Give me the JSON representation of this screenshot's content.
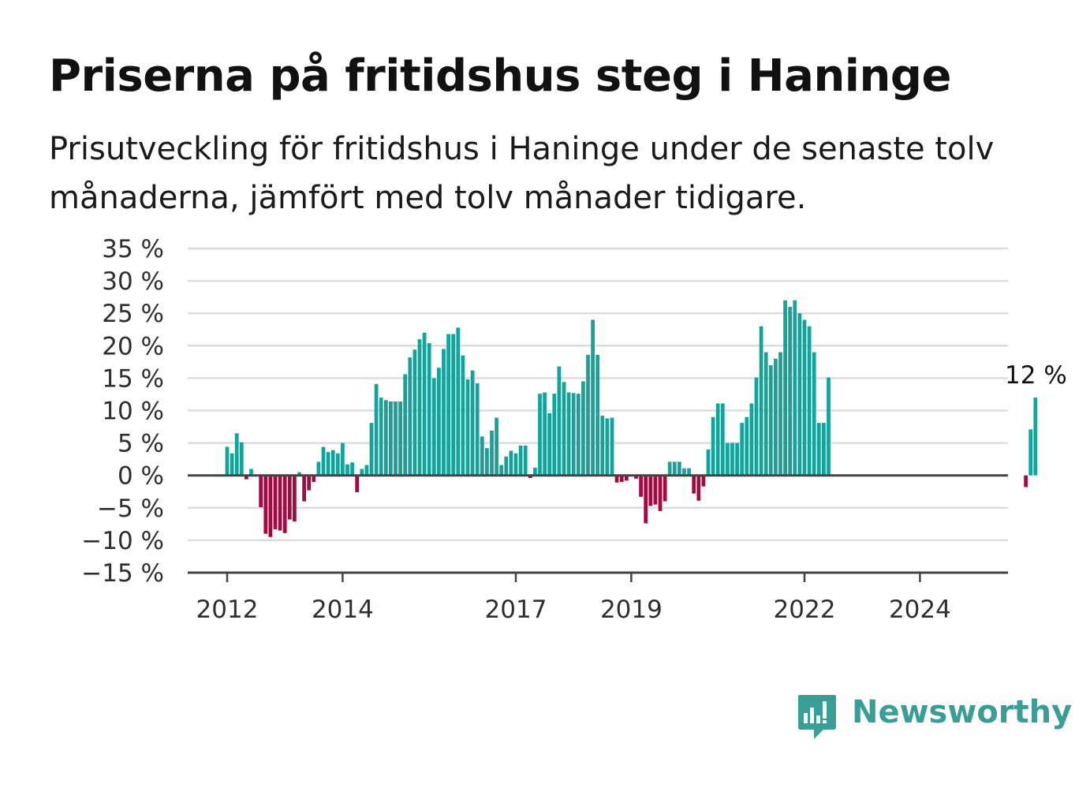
{
  "title": "Priserna på fritidshus steg i Haninge",
  "subtitle": "Prisutveckling för fritidshus i Haninge under de senaste tolv månaderna, jämfört med tolv månader tidigare.",
  "brand": "Newsworthy",
  "colors": {
    "positive": "#12a39a",
    "negative": "#a6083f",
    "grid": "#dddddd",
    "axis": "#444444",
    "brand": "#3a9e96"
  },
  "chart_data": {
    "type": "bar",
    "title": "Priserna på fritidshus steg i Haninge",
    "ylabel": "",
    "xlabel": "",
    "ylim": [
      -15,
      35
    ],
    "yticks": [
      35,
      30,
      25,
      20,
      15,
      10,
      5,
      0,
      -5,
      -10,
      -15
    ],
    "ytick_labels": [
      "35 %",
      "30 %",
      "25 %",
      "20 %",
      "15 %",
      "10 %",
      "5 %",
      "0 %",
      "−5 %",
      "−10 %",
      "−15 %"
    ],
    "xticks": [
      "2012",
      "2014",
      "2017",
      "2019",
      "2022",
      "2024"
    ],
    "grid": true,
    "start": "2012-01",
    "values": [
      4.4,
      3.4,
      6.5,
      5.1,
      -0.6,
      1.0,
      0,
      -4.9,
      -9.0,
      -9.5,
      -8.3,
      -8.5,
      -8.9,
      -6.8,
      -7.1,
      0.5,
      -4.0,
      -2.3,
      -1.0,
      2.1,
      4.4,
      3.6,
      3.9,
      3.4,
      5.0,
      1.7,
      2.0,
      -2.6,
      1.0,
      1.6,
      8.1,
      14.1,
      12.0,
      11.6,
      11.4,
      11.4,
      11.4,
      15.6,
      18.2,
      19.4,
      21.0,
      22.0,
      20.4,
      15.0,
      16.6,
      19.5,
      21.8,
      21.8,
      22.8,
      18.5,
      14.8,
      16.2,
      14.2,
      6.0,
      4.2,
      6.9,
      8.9,
      1.6,
      2.9,
      3.8,
      3.4,
      4.6,
      4.6,
      -0.4,
      1.2,
      12.6,
      12.8,
      9.6,
      12.6,
      16.8,
      14.4,
      12.8,
      12.7,
      12.6,
      14.5,
      18.6,
      24.0,
      18.6,
      9.2,
      8.8,
      8.9,
      -1.1,
      -1.0,
      -0.8,
      0,
      -0.5,
      -3.3,
      -7.4,
      -4.7,
      -4.5,
      -5.5,
      -4.0,
      2.1,
      2.1,
      2.1,
      1.1,
      1.1,
      -2.8,
      -3.9,
      -1.7,
      4.0,
      9.0,
      11.1,
      11.1,
      5.0,
      5.0,
      5.0,
      8.1,
      9.0,
      11.1,
      15.1,
      23.0,
      19.0,
      17.0,
      18.0,
      19.0,
      27.0,
      26.0,
      27.0,
      25.0,
      24.0,
      23.0,
      19.0,
      8.1,
      8.1,
      15.1,
      null,
      null,
      null,
      null,
      null,
      null,
      null,
      null,
      null,
      null,
      null,
      null,
      null,
      null,
      null,
      null,
      null,
      null,
      null,
      null,
      null,
      null,
      null,
      null,
      null,
      null,
      null,
      null,
      null,
      null,
      null,
      null,
      null,
      null,
      null,
      null,
      null,
      null,
      null,
      null,
      -1.8,
      7.1,
      12.0
    ],
    "annotations": [
      {
        "text": "12 %",
        "target": "last"
      }
    ]
  }
}
